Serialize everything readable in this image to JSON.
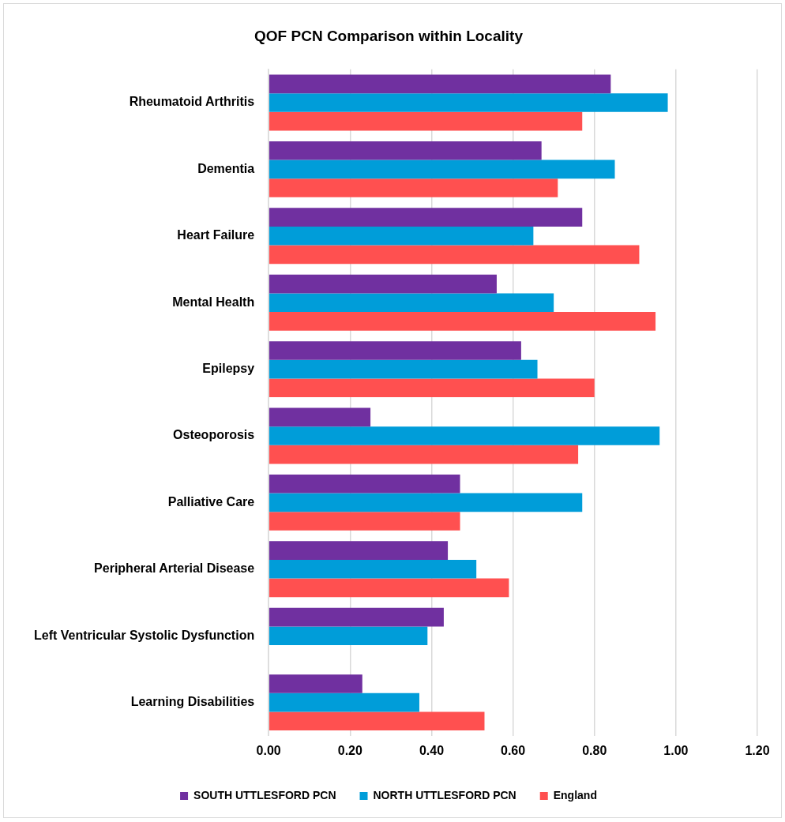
{
  "chart_data": {
    "type": "bar",
    "orientation": "horizontal",
    "title": "QOF PCN Comparison within Locality",
    "categories": [
      "Rheumatoid Arthritis",
      "Dementia",
      "Heart Failure",
      "Mental Health",
      "Epilepsy",
      "Osteoporosis",
      "Palliative Care",
      "Peripheral Arterial Disease",
      "Left Ventricular Systolic Dysfunction",
      "Learning Disabilities"
    ],
    "series": [
      {
        "name": "SOUTH UTTLESFORD PCN",
        "color": "#7030a0",
        "values": [
          0.84,
          0.67,
          0.77,
          0.56,
          0.62,
          0.25,
          0.47,
          0.44,
          0.43,
          0.23
        ]
      },
      {
        "name": "NORTH UTTLESFORD PCN",
        "color": "#009dd9",
        "values": [
          0.98,
          0.85,
          0.65,
          0.7,
          0.66,
          0.96,
          0.77,
          0.51,
          0.39,
          0.37
        ]
      },
      {
        "name": "England",
        "color": "#ff5050",
        "values": [
          0.77,
          0.71,
          0.91,
          0.95,
          0.8,
          0.76,
          0.47,
          0.59,
          null,
          0.53
        ]
      }
    ],
    "xlim": [
      0,
      1.2
    ],
    "xticks": [
      {
        "value": 0,
        "label": "0.00"
      },
      {
        "value": 0.2,
        "label": "0.20"
      },
      {
        "value": 0.4,
        "label": "0.40"
      },
      {
        "value": 0.6,
        "label": "0.60"
      },
      {
        "value": 0.8,
        "label": "0.80"
      },
      {
        "value": 1,
        "label": "1.00"
      },
      {
        "value": 1.2,
        "label": "1.20"
      }
    ],
    "grid": "x",
    "legend": "bottom"
  }
}
